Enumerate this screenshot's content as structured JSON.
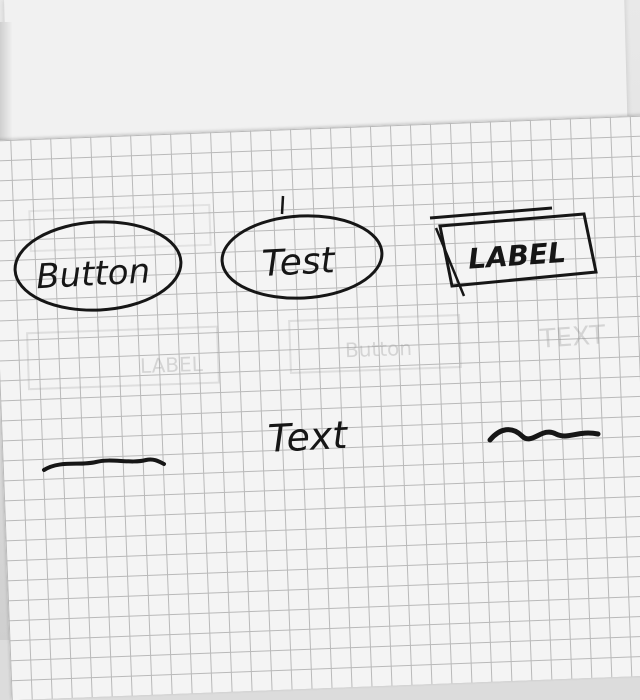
{
  "sketch": {
    "button_label": "Button",
    "text_label": "Test",
    "label_label": "LABEL",
    "center_text": "Text",
    "ghost_label": "LABEL",
    "ghost_button": "Button",
    "ghost_text": "TEXT"
  },
  "colors": {
    "ink": "#161616",
    "paper": "#f4f4f4",
    "grid": "#b9b9b9"
  }
}
